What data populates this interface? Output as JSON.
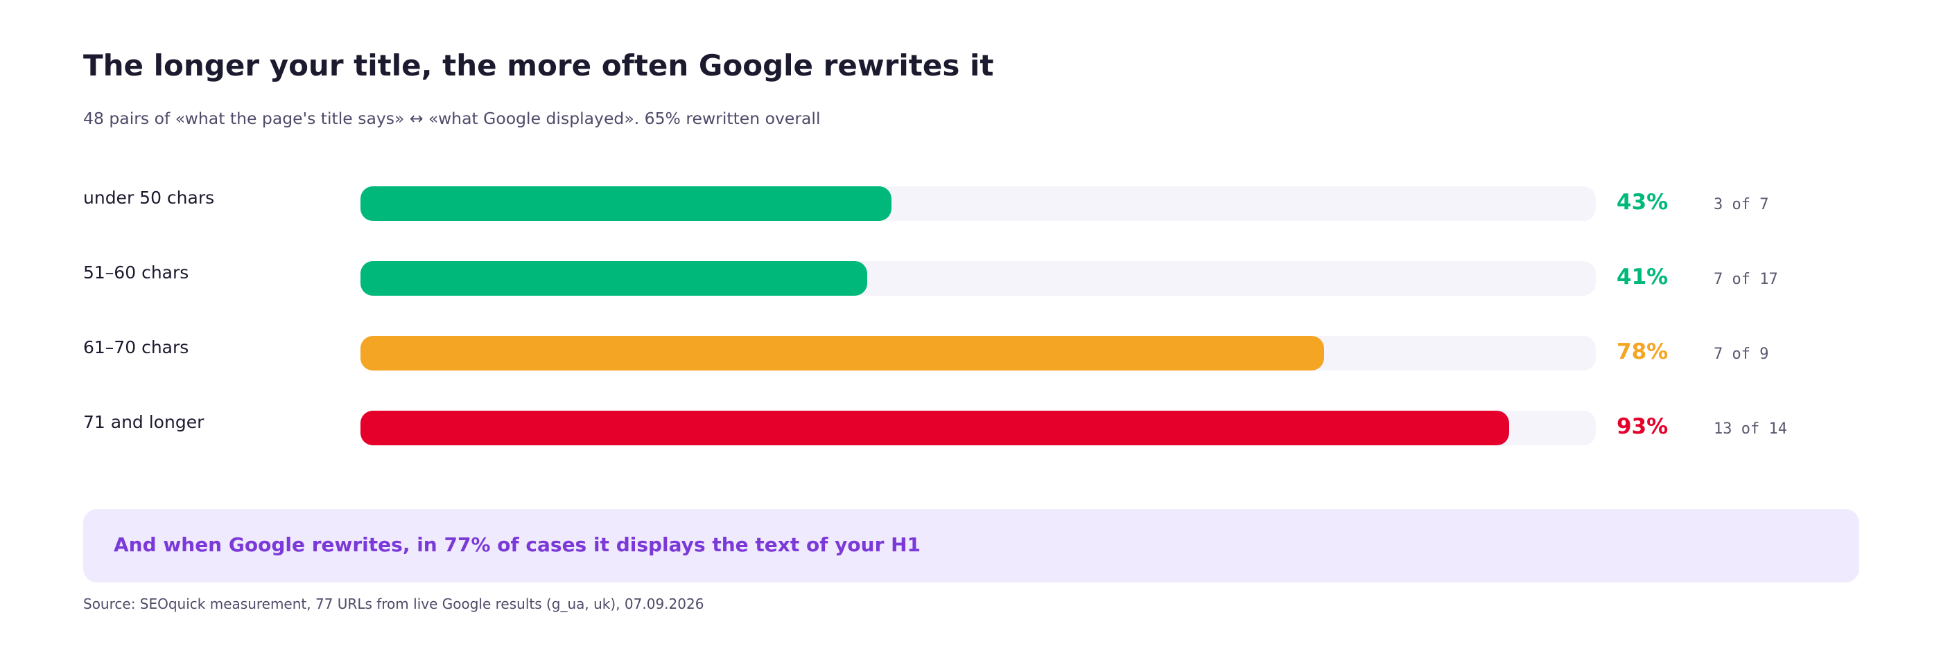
{
  "title": "The longer your title, the more often Google rewrites it",
  "subtitle": "48 pairs of «what the page's title says» ↔ «what Google displayed». 65% rewritten overall",
  "chart_data": {
    "type": "bar",
    "orientation": "horizontal",
    "title": "The longer your title, the more often Google rewrites it",
    "categories": [
      "under 50 chars",
      "51–60 chars",
      "61–70 chars",
      "71 and longer"
    ],
    "values": [
      43,
      41,
      78,
      93
    ],
    "value_labels": [
      "43%",
      "41%",
      "78%",
      "93%"
    ],
    "counts": [
      "3 of 7",
      "7 of 17",
      "7 of 9",
      "13 of 14"
    ],
    "colors": [
      "#00b87a",
      "#00b87a",
      "#f5a524",
      "#e4002b"
    ],
    "xlim": [
      0,
      100
    ],
    "grid": false,
    "legend": "none"
  },
  "track_color": "#f5f4fa",
  "callout": {
    "text": "And when Google rewrites, in 77% of cases it displays the text of your H1",
    "color": "#7b3ad8",
    "background": "#efeafd"
  },
  "source": "Source: SEOquick measurement, 77 URLs from live Google results (g_ua, uk), 07.09.2026"
}
